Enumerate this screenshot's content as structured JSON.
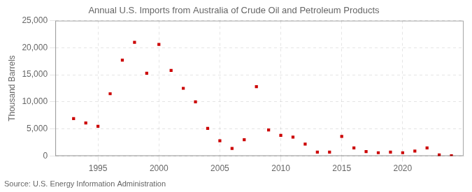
{
  "chart_data": {
    "type": "scatter",
    "title": "Annual U.S. Imports from Australia of Crude Oil and Petroleum Products",
    "ylabel": "Thousand Barrels",
    "annotation": "Source: U.S. Energy Information Administration",
    "x": [
      1993,
      1994,
      1995,
      1996,
      1997,
      1998,
      1999,
      2000,
      2001,
      2002,
      2003,
      2004,
      2005,
      2006,
      2007,
      2008,
      2009,
      2010,
      2011,
      2012,
      2013,
      2014,
      2015,
      2016,
      2017,
      2018,
      2019,
      2020,
      2021,
      2022,
      2023,
      2024
    ],
    "values": [
      6900,
      6100,
      5500,
      11500,
      17700,
      21000,
      15300,
      20600,
      15800,
      12500,
      10000,
      5100,
      2800,
      1400,
      3000,
      12800,
      4800,
      3800,
      3500,
      2200,
      700,
      700,
      3600,
      1500,
      800,
      600,
      700,
      600,
      900,
      1500,
      200,
      50
    ],
    "color": "#cc0000",
    "marker": "square",
    "xlim": [
      1991.5,
      2025
    ],
    "xticks": [
      1995,
      2000,
      2005,
      2010,
      2015,
      2020
    ],
    "ylim": [
      0,
      25000
    ],
    "yticks": [
      0,
      {
        "value": 5000,
        "label": "5,000"
      },
      {
        "value": 10000,
        "label": "10,000"
      },
      {
        "value": 15000,
        "label": "15,000"
      },
      {
        "value": 20000,
        "label": "20,000"
      },
      {
        "value": 25000,
        "label": "25,000"
      }
    ],
    "grid": true
  }
}
